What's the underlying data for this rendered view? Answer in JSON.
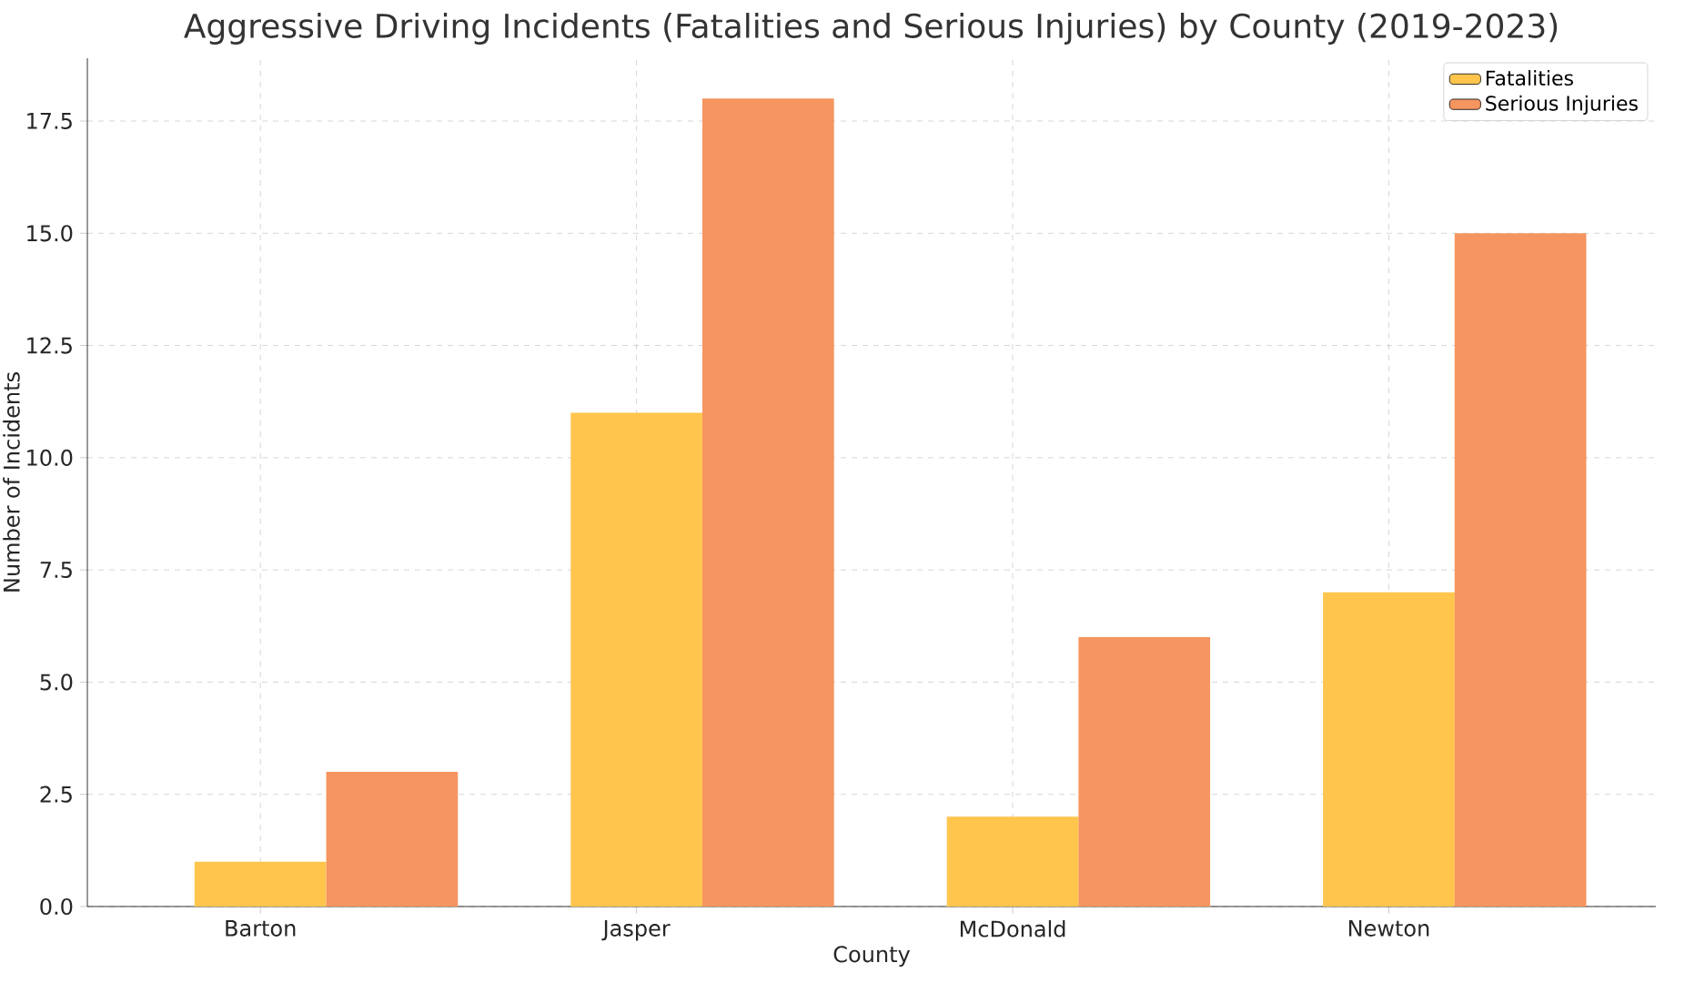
{
  "chart_data": {
    "type": "bar",
    "title": "Aggressive Driving Incidents (Fatalities and Serious Injuries) by County (2019-2023)",
    "xlabel": "County",
    "ylabel": "Number of Incidents",
    "categories": [
      "Barton",
      "Jasper",
      "McDonald",
      "Newton"
    ],
    "series": [
      {
        "name": "Fatalities",
        "color": "#ffc54d",
        "values": [
          1,
          11,
          2,
          7
        ]
      },
      {
        "name": "Serious Injuries",
        "color": "#f5955f",
        "values": [
          3,
          18,
          6,
          15
        ]
      }
    ],
    "ylim": [
      0,
      18.9
    ],
    "yticks": [
      {
        "value": 0,
        "label": "0.0"
      },
      {
        "value": 2.5,
        "label": "2.5"
      },
      {
        "value": 5,
        "label": "5.0"
      },
      {
        "value": 7.5,
        "label": "7.5"
      },
      {
        "value": 10,
        "label": "10.0"
      },
      {
        "value": 12.5,
        "label": "12.5"
      },
      {
        "value": 15,
        "label": "15.0"
      },
      {
        "value": 17.5,
        "label": "17.5"
      }
    ],
    "grid": true,
    "legend": "top right"
  }
}
